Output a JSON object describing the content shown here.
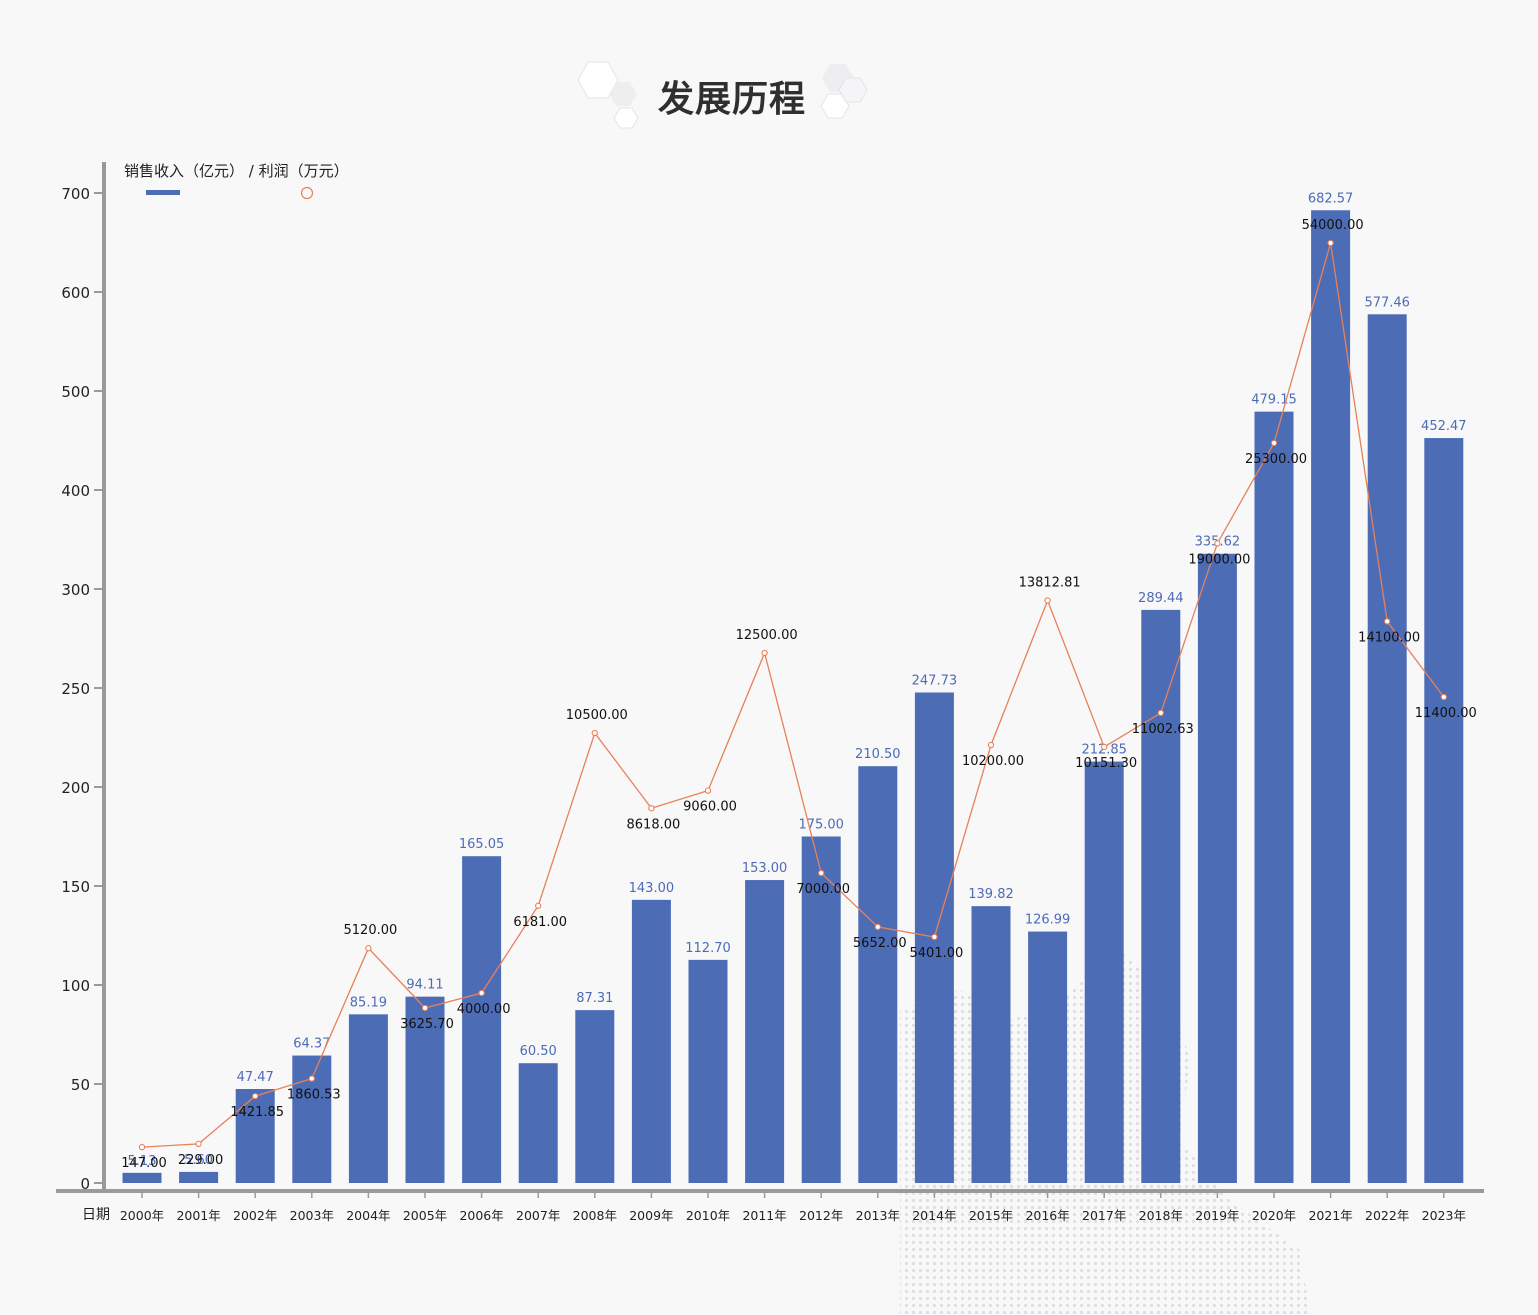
{
  "title": "发展历程",
  "legend": {
    "sales_label": "销售收入（亿元）",
    "separator": " / ",
    "profit_label": "利润（万元）"
  },
  "x_axis_label": "日期",
  "colors": {
    "bar": "#4d6cb6",
    "bar_label": "#4d6cb6",
    "line": "#e8805a",
    "axis": "#9a9a9a",
    "background": "#f8f8f9"
  },
  "chart_data": {
    "type": "bar+line",
    "categories": [
      "2000年",
      "2001年",
      "2002年",
      "2003年",
      "2004年",
      "2005年",
      "2006年",
      "2007年",
      "2008年",
      "2009年",
      "2010年",
      "2011年",
      "2012年",
      "2013年",
      "2014年",
      "2015年",
      "2016年",
      "2017年",
      "2018年",
      "2019年",
      "2020年",
      "2021年",
      "2022年",
      "2023年"
    ],
    "series": [
      {
        "name": "销售收入（亿元）",
        "type": "bar",
        "values": [
          5.13,
          5.6,
          47.47,
          64.37,
          85.19,
          94.11,
          165.05,
          60.5,
          87.31,
          143.0,
          112.7,
          153.0,
          175.0,
          210.5,
          247.73,
          139.82,
          126.99,
          212.85,
          289.44,
          335.62,
          479.15,
          682.57,
          577.46,
          452.47
        ],
        "labels": [
          "5.13",
          "5.60",
          "47.47",
          "64.37",
          "85.19",
          "94.11",
          "165.05",
          "60.50",
          "87.31",
          "143.00",
          "112.70",
          "153.00",
          "175.00",
          "210.50",
          "247.73",
          "139.82",
          "126.99",
          "212.85",
          "289.44",
          "335.62",
          "479.15",
          "682.57",
          "577.46",
          "452.47"
        ]
      },
      {
        "name": "利润（万元）",
        "type": "line",
        "values": [
          147.0,
          229.0,
          1421.85,
          1860.53,
          5120.0,
          3625.7,
          4000.0,
          6181.0,
          10500.0,
          8618.0,
          9060.0,
          12500.0,
          7000.0,
          5652.0,
          5401.0,
          10200.0,
          13812.81,
          10151.3,
          11002.63,
          19000.0,
          25300.0,
          54000.0,
          14100.0,
          11400.0
        ],
        "labels": [
          "147.00",
          "229.00",
          "1421.85",
          "1860.53",
          "5120.00",
          "3625.70",
          "4000.00",
          "6181.00",
          "10500.00",
          "8618.00",
          "9060.00",
          "12500.00",
          "7000.00",
          "5652.00",
          "5401.00",
          "10200.00",
          "13812.81",
          "10151.30",
          "11002.63",
          "19000.00",
          "25300.00",
          "54000.00",
          "14100.00",
          "11400.00"
        ]
      }
    ],
    "y_ticks": [
      "0",
      "50",
      "100",
      "150",
      "200",
      "250",
      "300",
      "400",
      "500",
      "600",
      "700"
    ],
    "y_tick_values": [
      0,
      50,
      100,
      150,
      200,
      250,
      300,
      400,
      500,
      600,
      700
    ],
    "y_scale_note": "piecewise axis: 0–300 in steps of 50, 300–700 in steps of 100",
    "legend_position": "top-left",
    "grid": false
  }
}
